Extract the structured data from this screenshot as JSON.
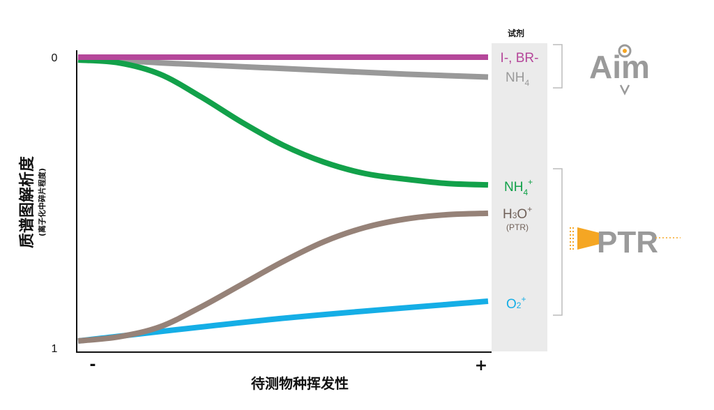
{
  "chart_data": {
    "type": "line",
    "xlabel": "待测物种挥发性",
    "ylabel": "质谱图解析度",
    "ylabel_sub": "(离子化中碎片程度)",
    "x_ticks": [
      "-",
      "+"
    ],
    "y_ticks": [
      "0",
      "1"
    ],
    "ylim": [
      0,
      1
    ],
    "y_inverted": true,
    "grid": false,
    "reagent_header": "试剂",
    "series": [
      {
        "name": "I-, BR-",
        "color": "#b5479a",
        "points": [
          [
            0,
            0.0
          ],
          [
            0.5,
            0.0
          ],
          [
            1,
            0.0
          ]
        ]
      },
      {
        "name": "NH4",
        "color": "#999999",
        "points": [
          [
            0,
            0.0
          ],
          [
            0.2,
            0.02
          ],
          [
            0.5,
            0.04
          ],
          [
            0.8,
            0.06
          ],
          [
            1,
            0.07
          ]
        ]
      },
      {
        "name": "NH4+",
        "color": "#12a14a",
        "points": [
          [
            0,
            0.01
          ],
          [
            0.1,
            0.02
          ],
          [
            0.2,
            0.06
          ],
          [
            0.3,
            0.14
          ],
          [
            0.4,
            0.23
          ],
          [
            0.5,
            0.31
          ],
          [
            0.6,
            0.37
          ],
          [
            0.7,
            0.41
          ],
          [
            0.8,
            0.43
          ],
          [
            0.9,
            0.445
          ],
          [
            1,
            0.45
          ]
        ]
      },
      {
        "name": "H3O+",
        "color": "#968278",
        "points": [
          [
            0,
            1.0
          ],
          [
            0.1,
            0.985
          ],
          [
            0.2,
            0.95
          ],
          [
            0.3,
            0.88
          ],
          [
            0.4,
            0.8
          ],
          [
            0.5,
            0.72
          ],
          [
            0.6,
            0.65
          ],
          [
            0.7,
            0.6
          ],
          [
            0.8,
            0.57
          ],
          [
            0.9,
            0.555
          ],
          [
            1,
            0.55
          ]
        ]
      },
      {
        "name": "O2+",
        "color": "#15aee6",
        "points": [
          [
            0,
            1.0
          ],
          [
            0.5,
            0.92
          ],
          [
            1,
            0.86
          ]
        ]
      }
    ],
    "labels": {
      "iodide": "I-, BR-",
      "nh4_gray_main": "NH",
      "nh4_gray_sub": "4",
      "nh4_green_main": "NH",
      "nh4_green_sub": "4",
      "nh4_green_sup": "+",
      "h3o_main": "H",
      "h3o_sub": "3",
      "h3o_rest": "O",
      "h3o_sup": "+",
      "h3o_note": "(PTR)",
      "o2_main": "O",
      "o2_sub": "2",
      "o2_sup": "+"
    },
    "logos": {
      "aim": "Aim",
      "ptr": "PTR"
    },
    "colors": {
      "panel": "#ebebeb",
      "bracket": "#bbbbbb",
      "ptr_orange": "#f5a623"
    }
  }
}
